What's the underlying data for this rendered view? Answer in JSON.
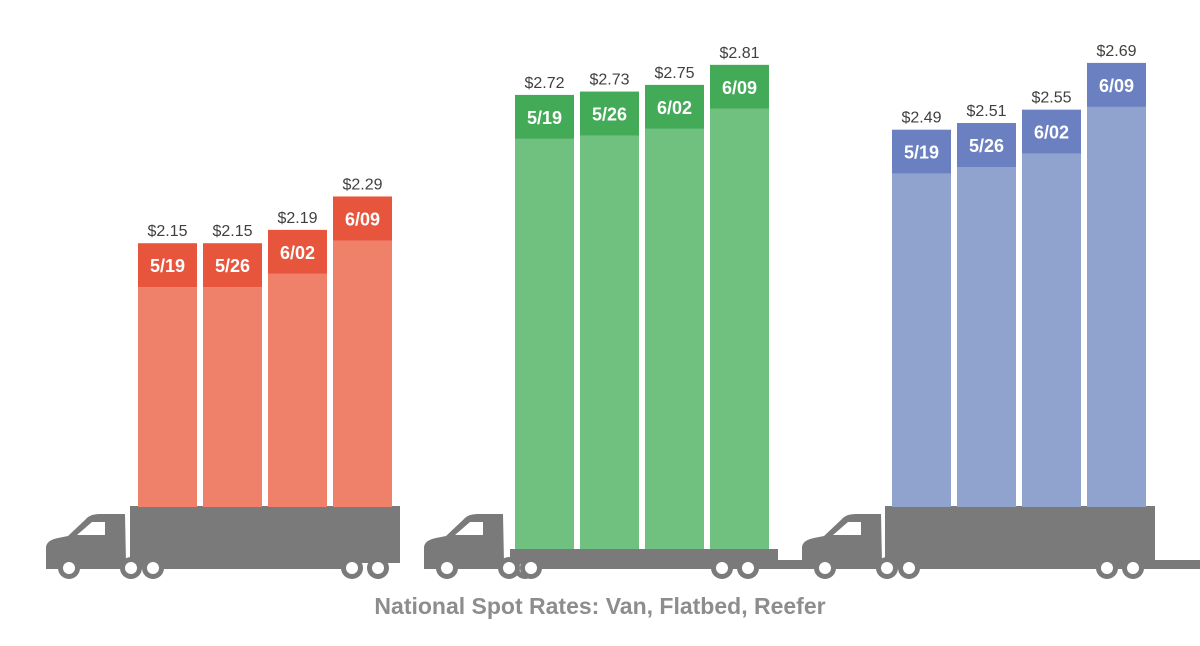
{
  "chart_data": {
    "type": "bar",
    "title": "National Spot Rates: Van, Flatbed, Reefer",
    "groups": [
      {
        "trailer": "van",
        "colors": {
          "cap": "#e8553d",
          "body": "#ef8069"
        },
        "categories": [
          "5/19",
          "5/26",
          "6/02",
          "6/09"
        ],
        "values": [
          2.15,
          2.15,
          2.19,
          2.29
        ],
        "labels": [
          "$2.15",
          "$2.15",
          "$2.19",
          "$2.29"
        ]
      },
      {
        "trailer": "flatbed",
        "colors": {
          "cap": "#43ab57",
          "body": "#70c07f"
        },
        "categories": [
          "5/19",
          "5/26",
          "6/02",
          "6/09"
        ],
        "values": [
          2.72,
          2.73,
          2.75,
          2.81
        ],
        "labels": [
          "$2.72",
          "$2.73",
          "$2.75",
          "$2.81"
        ]
      },
      {
        "trailer": "reefer",
        "colors": {
          "cap": "#6a80c0",
          "body": "#90a3cf"
        },
        "categories": [
          "5/19",
          "5/26",
          "6/02",
          "6/09"
        ],
        "values": [
          2.49,
          2.51,
          2.55,
          2.69
        ],
        "labels": [
          "$2.49",
          "$2.51",
          "$2.55",
          "$2.69"
        ]
      }
    ],
    "truck_color": "#7a7a7a",
    "label_color": "#404040"
  }
}
